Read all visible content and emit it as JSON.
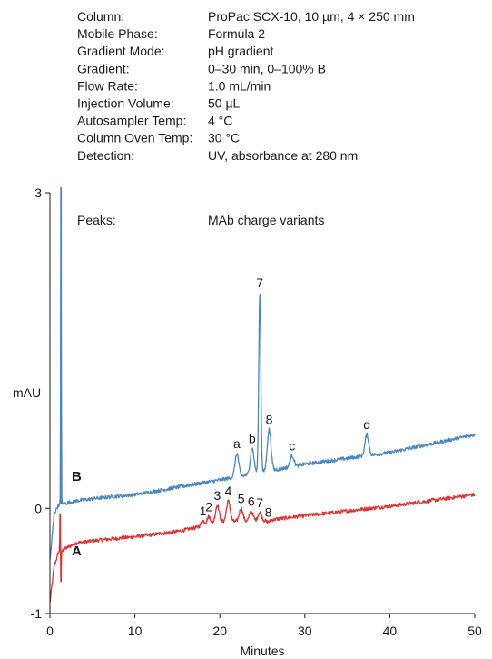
{
  "conditions": [
    {
      "label": "Column:",
      "value": "ProPac SCX-10, 10 µm, 4 × 250 mm"
    },
    {
      "label": "Mobile Phase:",
      "value": "Formula 2"
    },
    {
      "label": "Gradient Mode:",
      "value": "pH gradient"
    },
    {
      "label": "Gradient:",
      "value": "0–30 min, 0–100% B"
    },
    {
      "label": "Flow Rate:",
      "value": "1.0 mL/min"
    },
    {
      "label": "Injection Volume:",
      "value": "50 µL"
    },
    {
      "label": "Autosampler Temp:",
      "value": "4 °C"
    },
    {
      "label": "Column Oven Temp:",
      "value": "30 °C"
    },
    {
      "label": "Detection:",
      "value": "UV, absorbance at 280 nm"
    }
  ],
  "peaks_info": {
    "label": "Peaks:",
    "value": "MAb charge variants"
  },
  "colors": {
    "A": "#e03232",
    "B": "#4a86c0",
    "axis": "#1a1a1a"
  },
  "chart_data": {
    "type": "line",
    "title": "",
    "xlabel": "Minutes",
    "ylabel": "mAU",
    "xlim": [
      0,
      50
    ],
    "ylim": [
      -1,
      3
    ],
    "x_ticks": [
      0,
      10,
      20,
      30,
      40,
      50
    ],
    "y_ticks": [
      -1,
      0,
      3
    ],
    "grid": false,
    "series": [
      {
        "name": "A",
        "baseline": [
          [
            0,
            -0.9
          ],
          [
            0.5,
            -0.55
          ],
          [
            1,
            -0.42
          ],
          [
            3,
            -0.33
          ],
          [
            6,
            -0.3
          ],
          [
            10,
            -0.27
          ],
          [
            15,
            -0.22
          ],
          [
            18,
            -0.17
          ],
          [
            20,
            -0.13
          ],
          [
            25,
            -0.12
          ],
          [
            30,
            -0.07
          ],
          [
            40,
            0.02
          ],
          [
            50,
            0.13
          ]
        ],
        "spikes": [
          {
            "x": 1.2,
            "y": -0.05
          },
          {
            "x": 1.3,
            "y": -0.7
          }
        ],
        "peaks": [
          {
            "label": "1",
            "x": 18.0,
            "y": -0.12
          },
          {
            "label": "2",
            "x": 18.7,
            "y": -0.08
          },
          {
            "label": "3",
            "x": 19.7,
            "y": 0.03
          },
          {
            "label": "4",
            "x": 21.0,
            "y": 0.07
          },
          {
            "label": "5",
            "x": 22.5,
            "y": 0.0
          },
          {
            "label": "6",
            "x": 23.7,
            "y": -0.03
          },
          {
            "label": "7",
            "x": 24.7,
            "y": -0.04
          },
          {
            "label": "8",
            "x": 25.7,
            "y": -0.13
          }
        ]
      },
      {
        "name": "B",
        "baseline": [
          [
            0,
            -0.5
          ],
          [
            0.5,
            -0.05
          ],
          [
            1,
            0.03
          ],
          [
            3,
            0.07
          ],
          [
            6,
            0.1
          ],
          [
            10,
            0.13
          ],
          [
            15,
            0.2
          ],
          [
            20,
            0.27
          ],
          [
            25,
            0.34
          ],
          [
            30,
            0.42
          ],
          [
            40,
            0.53
          ],
          [
            50,
            0.7
          ]
        ],
        "spikes": [
          {
            "x": 1.3,
            "y": 3.05
          }
        ],
        "peaks": [
          {
            "label": "a",
            "x": 22.0,
            "y": 0.52
          },
          {
            "label": "b",
            "x": 23.8,
            "y": 0.57
          },
          {
            "label": "7",
            "x": 24.7,
            "y": 2.05
          },
          {
            "label": "8",
            "x": 25.8,
            "y": 0.75
          },
          {
            "label": "c",
            "x": 28.5,
            "y": 0.5
          },
          {
            "label": "d",
            "x": 37.3,
            "y": 0.7
          }
        ]
      }
    ]
  }
}
